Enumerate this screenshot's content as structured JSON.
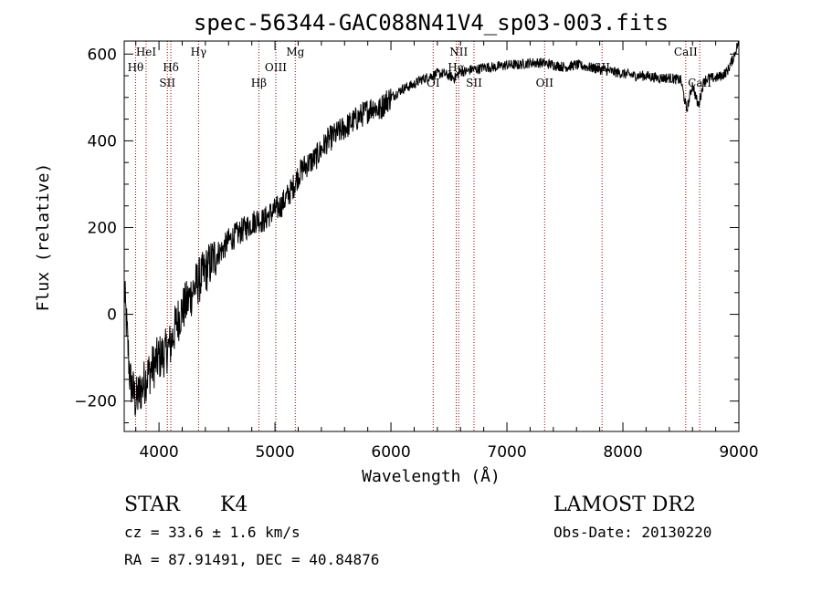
{
  "chart_data": {
    "type": "line",
    "title": "spec-56344-GAC088N41V4_sp03-003.fits",
    "xlabel": "Wavelength (Å)",
    "ylabel": "Flux (relative)",
    "xlim": [
      3700,
      9000
    ],
    "ylim": [
      -270,
      630
    ],
    "x_ticks": [
      {
        "value": 4000,
        "label": "4000"
      },
      {
        "value": 5000,
        "label": "5000"
      },
      {
        "value": 6000,
        "label": "6000"
      },
      {
        "value": 7000,
        "label": "7000"
      },
      {
        "value": 8000,
        "label": "8000"
      },
      {
        "value": 9000,
        "label": "9000"
      }
    ],
    "y_ticks": [
      {
        "value": -200,
        "label": "−200"
      },
      {
        "value": 0,
        "label": "0"
      },
      {
        "value": 200,
        "label": "200"
      },
      {
        "value": 400,
        "label": "400"
      },
      {
        "value": 600,
        "label": "600"
      }
    ],
    "line_color": "#000000",
    "marker_color": "#8b0000",
    "spectral_lines": [
      {
        "label": "Hθ",
        "wavelength": 3798,
        "row": 2
      },
      {
        "label": "HeI",
        "wavelength": 3889,
        "row": 1
      },
      {
        "label": "SII",
        "wavelength": 4072,
        "row": 3
      },
      {
        "label": "Hδ",
        "wavelength": 4102,
        "row": 2
      },
      {
        "label": "Hγ",
        "wavelength": 4341,
        "row": 1
      },
      {
        "label": "Hβ",
        "wavelength": 4861,
        "row": 3
      },
      {
        "label": "OIII",
        "wavelength": 5007,
        "row": 2
      },
      {
        "label": "Mg",
        "wavelength": 5175,
        "row": 1
      },
      {
        "label": "OI",
        "wavelength": 6364,
        "row": 3
      },
      {
        "label": "NII",
        "wavelength": 6584,
        "row": 1
      },
      {
        "label": "Hα",
        "wavelength": 6563,
        "row": 2
      },
      {
        "label": "SII",
        "wavelength": 6716,
        "row": 3
      },
      {
        "label": "OII",
        "wavelength": 7325,
        "row": 3
      },
      {
        "label": "SII",
        "wavelength": 7820,
        "row": 2
      },
      {
        "label": "CaII",
        "wavelength": 8542,
        "row": 1
      },
      {
        "label": "CaII",
        "wavelength": 8662,
        "row": 3
      }
    ],
    "series": [
      {
        "x": [
          3700,
          3750,
          3800,
          3850,
          3900,
          3950,
          4000,
          4050,
          4100,
          4150,
          4200,
          4250,
          4300,
          4350,
          4400,
          4450,
          4500,
          4550,
          4600,
          4650,
          4700,
          4750,
          4800,
          4850,
          4900,
          4950,
          5000,
          5050,
          5100,
          5150,
          5200,
          5250,
          5300,
          5350,
          5400,
          5450,
          5500,
          5550,
          5600,
          5650,
          5700,
          5750,
          5800,
          5850,
          5900,
          5950,
          6000,
          6050,
          6100,
          6150,
          6200,
          6250,
          6300,
          6350,
          6400,
          6450,
          6500,
          6550,
          6600,
          6650,
          6700,
          6750,
          6800,
          6900,
          7000,
          7100,
          7200,
          7300,
          7400,
          7500,
          7600,
          7700,
          7800,
          7900,
          8000,
          8100,
          8200,
          8300,
          8400,
          8500,
          8550,
          8600,
          8650,
          8700,
          8750,
          8800,
          8850,
          8900,
          8950,
          9000
        ],
        "y": [
          60,
          -150,
          -200,
          -170,
          -140,
          -120,
          -100,
          -90,
          -70,
          -20,
          10,
          30,
          60,
          80,
          100,
          120,
          140,
          150,
          170,
          180,
          190,
          200,
          210,
          220,
          215,
          230,
          240,
          250,
          270,
          290,
          320,
          340,
          350,
          360,
          380,
          400,
          410,
          420,
          430,
          440,
          450,
          460,
          470,
          480,
          470,
          490,
          500,
          510,
          520,
          525,
          530,
          540,
          545,
          550,
          555,
          555,
          550,
          545,
          560,
          560,
          565,
          565,
          570,
          570,
          575,
          575,
          580,
          580,
          575,
          570,
          575,
          570,
          565,
          560,
          555,
          550,
          550,
          545,
          545,
          540,
          470,
          530,
          480,
          540,
          545,
          545,
          550,
          560,
          590,
          630
        ]
      }
    ]
  },
  "footer": {
    "object_class": "STAR",
    "subclass": "K4",
    "survey": "LAMOST DR2",
    "redshift": "cz = 33.6 ± 1.6 km/s",
    "obs_date": "Obs-Date: 20130220",
    "coords": "RA =  87.91491, DEC =  40.84876"
  }
}
